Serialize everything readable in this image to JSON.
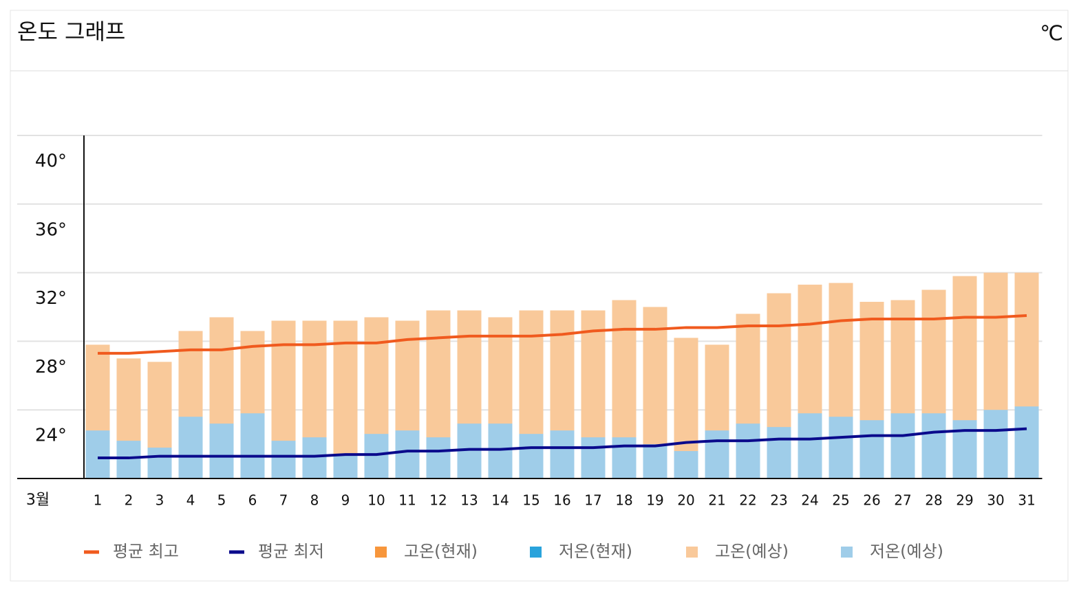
{
  "chart_data": {
    "type": "bar",
    "title": "온도 그래프",
    "unit": "℃",
    "month_label": "3월",
    "categories": [
      "1",
      "2",
      "3",
      "4",
      "5",
      "6",
      "7",
      "8",
      "9",
      "10",
      "11",
      "12",
      "13",
      "14",
      "15",
      "16",
      "17",
      "18",
      "19",
      "20",
      "21",
      "22",
      "23",
      "24",
      "25",
      "26",
      "27",
      "28",
      "29",
      "30",
      "31"
    ],
    "ylim": [
      20,
      40
    ],
    "yticks": [
      {
        "value": 24,
        "label": "24°"
      },
      {
        "value": 28,
        "label": "28°"
      },
      {
        "value": 32,
        "label": "32°"
      },
      {
        "value": 36,
        "label": "36°"
      },
      {
        "value": 40,
        "label": "40°"
      }
    ],
    "grid": true,
    "legend": "bottom",
    "series": [
      {
        "name": "평균 최고",
        "type": "line",
        "color": "#f05a1e",
        "values": [
          27.3,
          27.3,
          27.4,
          27.5,
          27.5,
          27.7,
          27.8,
          27.8,
          27.9,
          27.9,
          28.1,
          28.2,
          28.3,
          28.3,
          28.3,
          28.4,
          28.6,
          28.7,
          28.7,
          28.8,
          28.8,
          28.9,
          28.9,
          29.0,
          29.2,
          29.3,
          29.3,
          29.3,
          29.4,
          29.4,
          29.5
        ]
      },
      {
        "name": "평균 최저",
        "type": "line",
        "color": "#0a0a8c",
        "values": [
          21.2,
          21.2,
          21.3,
          21.3,
          21.3,
          21.3,
          21.3,
          21.3,
          21.4,
          21.4,
          21.6,
          21.6,
          21.7,
          21.7,
          21.8,
          21.8,
          21.8,
          21.9,
          21.9,
          22.1,
          22.2,
          22.2,
          22.3,
          22.3,
          22.4,
          22.5,
          22.5,
          22.7,
          22.8,
          22.8,
          22.9
        ]
      },
      {
        "name": "고온(현재)",
        "type": "bar",
        "color": "#f7963c",
        "values": [
          null,
          null,
          null,
          null,
          null,
          null,
          null,
          null,
          null,
          null,
          null,
          null,
          null,
          null,
          null,
          null,
          null,
          null,
          null,
          null,
          null,
          null,
          null,
          null,
          null,
          null,
          null,
          null,
          null,
          null,
          null
        ]
      },
      {
        "name": "저온(현재)",
        "type": "bar",
        "color": "#29a3dc",
        "values": [
          null,
          null,
          null,
          null,
          null,
          null,
          null,
          null,
          null,
          null,
          null,
          null,
          null,
          null,
          null,
          null,
          null,
          null,
          null,
          null,
          null,
          null,
          null,
          null,
          null,
          null,
          null,
          null,
          null,
          null,
          null
        ]
      },
      {
        "name": "고온(예상)",
        "type": "bar",
        "color": "#f9c99a",
        "values": [
          27.8,
          27.0,
          26.8,
          28.6,
          29.4,
          28.6,
          29.2,
          29.2,
          29.2,
          29.4,
          29.2,
          29.8,
          29.8,
          29.4,
          29.8,
          29.8,
          29.8,
          30.4,
          30.0,
          28.2,
          27.8,
          29.6,
          30.8,
          31.3,
          31.4,
          30.3,
          30.4,
          31.0,
          31.8,
          32.0,
          32.0
        ]
      },
      {
        "name": "저온(예상)",
        "type": "bar",
        "color": "#9fcde9",
        "values": [
          22.8,
          22.2,
          21.8,
          23.6,
          23.2,
          23.8,
          22.2,
          22.4,
          21.4,
          22.6,
          22.8,
          22.4,
          23.2,
          23.2,
          22.6,
          22.8,
          22.4,
          22.4,
          22.0,
          21.6,
          22.8,
          23.2,
          23.0,
          23.8,
          23.6,
          23.4,
          23.8,
          23.8,
          23.4,
          24.0,
          24.2
        ]
      }
    ]
  }
}
